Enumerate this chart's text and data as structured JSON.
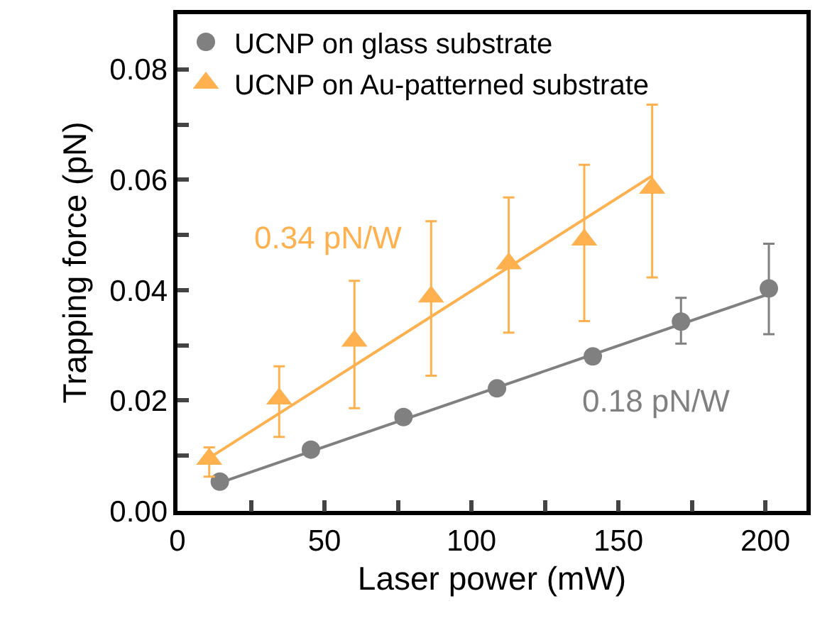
{
  "chart_data": {
    "type": "scatter",
    "xlabel": "Laser power (mW)",
    "ylabel": "Trapping force (pN)",
    "xlim": [
      0,
      214
    ],
    "xticks": [
      0,
      {
        "value": 25,
        "label": null
      },
      50,
      {
        "value": 75,
        "label": null
      },
      100,
      {
        "value": 125,
        "label": null
      },
      150,
      {
        "value": 175,
        "label": null
      },
      200
    ],
    "ylim": [
      0,
      0.09
    ],
    "yticks": [
      "0.00",
      {
        "value": 0.01,
        "label": null
      },
      {
        "value": 0.02,
        "label": "0.02"
      },
      {
        "value": 0.03,
        "label": null
      },
      {
        "value": 0.04,
        "label": "0.04"
      },
      {
        "value": 0.05,
        "label": null
      },
      {
        "value": 0.06,
        "label": "0.06"
      },
      {
        "value": 0.07,
        "label": null
      },
      {
        "value": 0.08,
        "label": "0.08"
      }
    ],
    "legend": "top left",
    "series": [
      {
        "name": "UCNP on glass substrate",
        "marker": "circle",
        "color": "#808080",
        "x": [
          14.4,
          45.4,
          76.9,
          108.7,
          141.3,
          171.3,
          201.2
        ],
        "values": [
          0.0053,
          0.0111,
          0.017,
          0.0222,
          0.028,
          0.0343,
          0.0403
        ],
        "errors": [
          null,
          null,
          null,
          null,
          null,
          [
            0.0303,
            0.0386
          ],
          [
            0.032,
            0.0484
          ]
        ]
      },
      {
        "name": "UCNP on Au-patterned substrate",
        "marker": "triangle",
        "color": "#ffb04f",
        "x": [
          10.8,
          34.6,
          60.2,
          86.3,
          112.7,
          138.4,
          161.5
        ],
        "values": [
          0.0094,
          0.0203,
          0.0308,
          0.0388,
          0.0448,
          0.0491,
          0.0585
        ],
        "errors": [
          [
            0.0062,
            0.0115
          ],
          [
            0.0134,
            0.0262
          ],
          [
            0.0186,
            0.0417
          ],
          [
            0.0245,
            0.0525
          ],
          [
            0.0323,
            0.0568
          ],
          [
            0.0344,
            0.0627
          ],
          [
            0.0423,
            0.0736
          ]
        ]
      },
      {
        "type": "line",
        "marker": "none",
        "color": "#808080",
        "x": [
          14.4,
          201.2
        ],
        "values": [
          0.0051,
          0.0393
        ]
      },
      {
        "type": "line",
        "marker": "none",
        "color": "#ffb04f",
        "x": [
          10.8,
          161.5
        ],
        "values": [
          0.0096,
          0.0607
        ]
      }
    ],
    "annotations": [
      "0.18 pN/W",
      "0.34 pN/W"
    ]
  }
}
